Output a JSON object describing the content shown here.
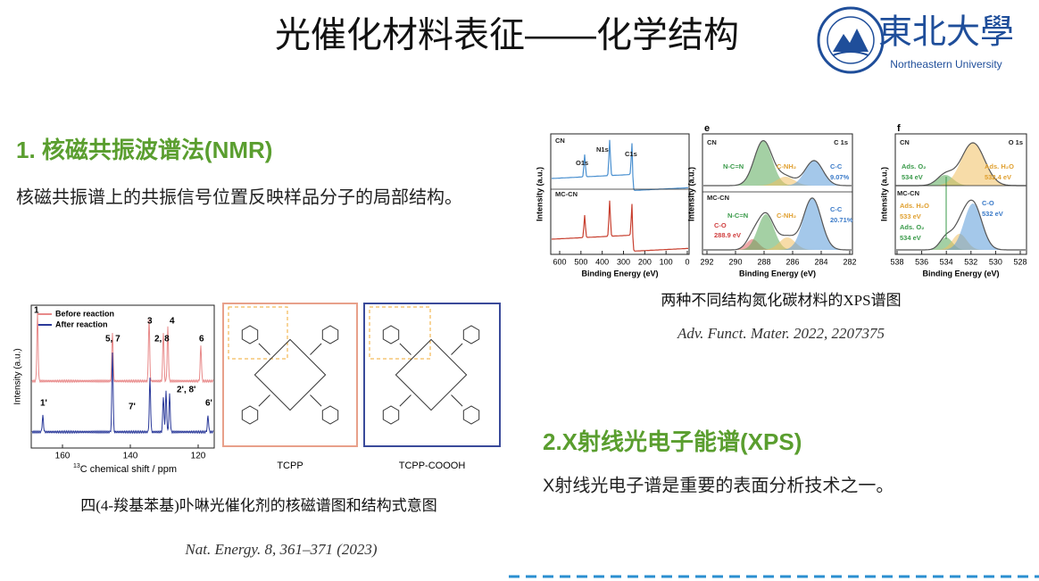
{
  "header": {
    "title": "光催化材料表征——化学结构",
    "logo_name": "東北大學",
    "logo_english": "Northeastern University"
  },
  "nmr": {
    "heading": "1. 核磁共振波谱法(NMR)",
    "description": "核磁共振谱上的共振信号位置反映样品分子的局部结构。",
    "figure": {
      "legend": [
        "Before reaction",
        "After reaction"
      ],
      "y_label": "Intensity (a.u.)",
      "x_label_sup": "13",
      "x_label": "C chemical shift / ppm",
      "x_ticks": [
        160,
        140,
        120
      ],
      "peak_labels": [
        "1",
        "3",
        "4",
        "5, 7",
        "2, 8",
        "6",
        "1'",
        "7'",
        "2', 8'",
        "6'"
      ],
      "structures": [
        "TCPP",
        "TCPP-COOOH"
      ]
    },
    "caption": "四(4-羧基苯基)卟啉光催化剂的核磁谱图和结构式意图",
    "reference": "Nat. Energy. 8, 361–371 (2023)"
  },
  "xps": {
    "heading": "2.X射线光电子能谱(XPS)",
    "description": "X射线光电子谱是重要的表面分析技术之一。",
    "caption": "两种不同结构氮化碳材料的XPS谱图",
    "reference": "Adv. Funct. Mater. 2022, 2207375",
    "x_label": "Binding Energy (eV)",
    "y_label": "Intensity (a.u.)",
    "panels": [
      {
        "x_ticks": [
          600,
          500,
          400,
          300,
          200,
          100,
          0
        ],
        "labels": [
          "CN",
          "MC-CN",
          "O1s",
          "N1s",
          "C1s"
        ]
      },
      {
        "letter": "e",
        "x_ticks": [
          292,
          290,
          288,
          286,
          284,
          282
        ],
        "labels": [
          "CN",
          "C 1s",
          "N-C=N",
          "C-NH₂",
          "C-C",
          "9.07%",
          "MC-CN",
          "N-C=N",
          "C-NH₂",
          "C-C",
          "20.71%",
          "C-O",
          "288.9 eV"
        ]
      },
      {
        "letter": "f",
        "x_ticks": [
          538,
          536,
          534,
          532,
          530,
          528
        ],
        "labels": [
          "CN",
          "O 1s",
          "Ads. O₂",
          "534 eV",
          "Ads. H₂O",
          "532.4 eV",
          "MC-CN",
          "Ads. H₂O",
          "533 eV",
          "C-O",
          "532 eV",
          "Ads. O₂",
          "534 eV"
        ]
      }
    ]
  }
}
